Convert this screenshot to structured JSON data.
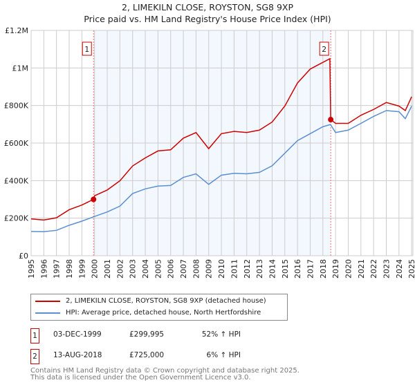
{
  "chart_data": {
    "type": "line",
    "title": "2, LIMEKILN CLOSE, ROYSTON, SG8 9XP",
    "subtitle": "Price paid vs. HM Land Registry's House Price Index (HPI)",
    "xlim": [
      1995,
      2025.1
    ],
    "ylim": [
      0,
      1200000
    ],
    "yticks": [
      {
        "v": 0,
        "label": "£0"
      },
      {
        "v": 200000,
        "label": "£200K"
      },
      {
        "v": 400000,
        "label": "£400K"
      },
      {
        "v": 600000,
        "label": "£600K"
      },
      {
        "v": 800000,
        "label": "£800K"
      },
      {
        "v": 1000000,
        "label": "£1M"
      },
      {
        "v": 1200000,
        "label": "£1.2M"
      }
    ],
    "xticks": [
      "1995",
      "1996",
      "1997",
      "1998",
      "1999",
      "2000",
      "2001",
      "2002",
      "2003",
      "2004",
      "2005",
      "2006",
      "2007",
      "2008",
      "2009",
      "2010",
      "2011",
      "2012",
      "2013",
      "2014",
      "2015",
      "2016",
      "2017",
      "2018",
      "2019",
      "2020",
      "2021",
      "2022",
      "2023",
      "2024",
      "2025"
    ],
    "grid": true,
    "shaded_range": [
      1999.92,
      2018.62
    ],
    "series": [
      {
        "name": "2, LIMEKILN CLOSE, ROYSTON, SG8 9XP (detached house)",
        "color": "#cc0000",
        "x": [
          1995,
          1996,
          1997,
          1998,
          1999,
          1999.92,
          2000,
          2001,
          2002,
          2003,
          2004,
          2005,
          2006,
          2007,
          2008,
          2009,
          2010,
          2011,
          2012,
          2013,
          2014,
          2015,
          2016,
          2017,
          2017.5,
          2018.55,
          2018.62,
          2019,
          2020,
          2021,
          2022,
          2023,
          2024,
          2024.5,
          2025
        ],
        "y": [
          196000,
          190000,
          202000,
          245000,
          270000,
          299995,
          319000,
          350000,
          399000,
          478000,
          521000,
          558000,
          564000,
          626000,
          656000,
          570000,
          650000,
          662000,
          656000,
          669000,
          712000,
          797000,
          920000,
          994000,
          1012000,
          1049000,
          725000,
          705000,
          705000,
          748000,
          779000,
          816000,
          797000,
          773000,
          847000
        ]
      },
      {
        "name": "HPI: Average price, detached house, North Hertfordshire",
        "color": "#5b8fd0",
        "x": [
          1995,
          1996,
          1997,
          1998,
          1999,
          2000,
          2001,
          2002,
          2003,
          2004,
          2005,
          2006,
          2007,
          2008,
          2009,
          2010,
          2011,
          2012,
          2013,
          2014,
          2015,
          2016,
          2017,
          2018,
          2018.6,
          2019,
          2020,
          2021,
          2022,
          2023,
          2024,
          2024.5,
          2025
        ],
        "y": [
          129000,
          128000,
          135000,
          162000,
          184000,
          209000,
          233000,
          264000,
          331000,
          356000,
          371000,
          374000,
          417000,
          436000,
          380000,
          429000,
          439000,
          436000,
          444000,
          479000,
          546000,
          613000,
          650000,
          687000,
          699000,
          656000,
          669000,
          705000,
          742000,
          773000,
          767000,
          730000,
          797000
        ]
      }
    ],
    "markers": [
      {
        "label": "1",
        "x": 1999.92,
        "y": 299995
      },
      {
        "label": "2",
        "x": 2018.62,
        "y": 725000
      }
    ]
  },
  "legend": {
    "series1": "2, LIMEKILN CLOSE, ROYSTON, SG8 9XP (detached house)",
    "series2": "HPI: Average price, detached house, North Hertfordshire"
  },
  "transactions": [
    {
      "num": "1",
      "date": "03-DEC-1999",
      "price": "£299,995",
      "hpi": "52% ↑ HPI"
    },
    {
      "num": "2",
      "date": "13-AUG-2018",
      "price": "£725,000",
      "hpi": "6% ↑ HPI"
    }
  ],
  "footer": {
    "line1": "Contains HM Land Registry data © Crown copyright and database right 2025.",
    "line2": "This data is licensed under the Open Government Licence v3.0."
  }
}
